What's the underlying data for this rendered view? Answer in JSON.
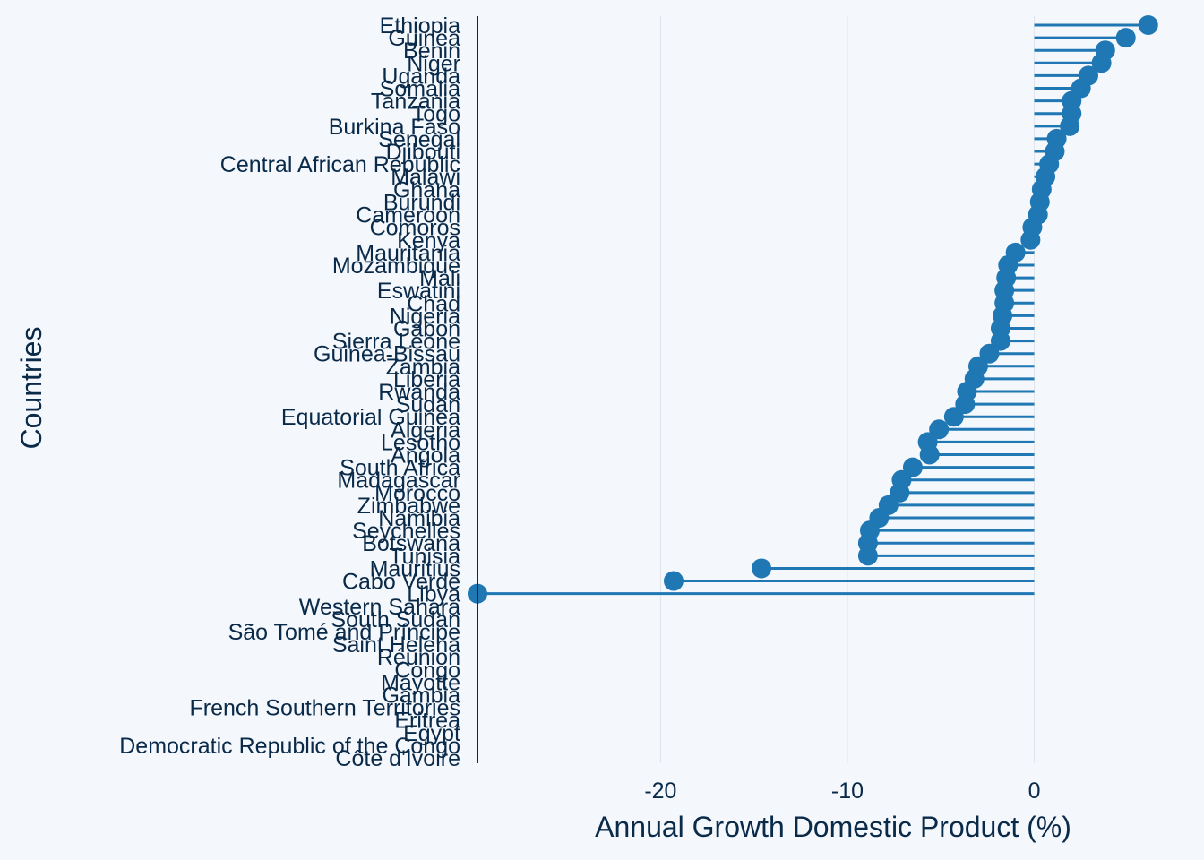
{
  "chart_data": {
    "type": "lollipop",
    "orientation": "horizontal",
    "xlabel": "Annual Growth Domestic Product (%)",
    "ylabel": "Countries",
    "xlim": [
      -29.8,
      6.4
    ],
    "xticks": [
      -20,
      -10,
      0
    ],
    "grid": "vertical",
    "color": "#1f77b4",
    "axis_color": "#0a2a4a",
    "background": "#f4f7fb",
    "categories": [
      "Ethiopia",
      "Guinea",
      "Benin",
      "Niger",
      "Uganda",
      "Somalia",
      "Tanzania",
      "Togo",
      "Burkina Faso",
      "Senegal",
      "Djibouti",
      "Central African Republic",
      "Malawi",
      "Ghana",
      "Burundi",
      "Cameroon",
      "Comoros",
      "Kenya",
      "Mauritania",
      "Mozambique",
      "Mali",
      "Eswatini",
      "Chad",
      "Nigeria",
      "Gabon",
      "Sierra Leone",
      "Guinea-Bissau",
      "Zambia",
      "Liberia",
      "Rwanda",
      "Sudan",
      "Equatorial Guinea",
      "Algeria",
      "Lesotho",
      "Angola",
      "South Africa",
      "Madagascar",
      "Morocco",
      "Zimbabwe",
      "Namibia",
      "Seychelles",
      "Botswana",
      "Tunisia",
      "Mauritius",
      "Cabo Verde",
      "Libya",
      "Western Sahara",
      "South Sudan",
      "São Tomé and Príncipe",
      "Saint Helena",
      "Réunion",
      "Congo",
      "Mayotte",
      "Gambia",
      "French Southern Territories",
      "Eritrea",
      "Egypt",
      "Democratic Republic of the Congo",
      "Côte d'Ivoire"
    ],
    "values": [
      6.1,
      4.9,
      3.8,
      3.6,
      2.9,
      2.5,
      2.0,
      2.0,
      1.9,
      1.2,
      1.1,
      0.8,
      0.6,
      0.4,
      0.3,
      0.2,
      -0.1,
      -0.2,
      -1.0,
      -1.4,
      -1.5,
      -1.6,
      -1.6,
      -1.7,
      -1.8,
      -1.8,
      -2.4,
      -3.0,
      -3.2,
      -3.6,
      -3.7,
      -4.3,
      -5.1,
      -5.7,
      -5.6,
      -6.5,
      -7.1,
      -7.2,
      -7.8,
      -8.3,
      -8.8,
      -8.9,
      -8.9,
      -14.6,
      -19.3,
      -29.8,
      null,
      null,
      null,
      null,
      null,
      null,
      null,
      null,
      null,
      null,
      null,
      null,
      null
    ]
  }
}
